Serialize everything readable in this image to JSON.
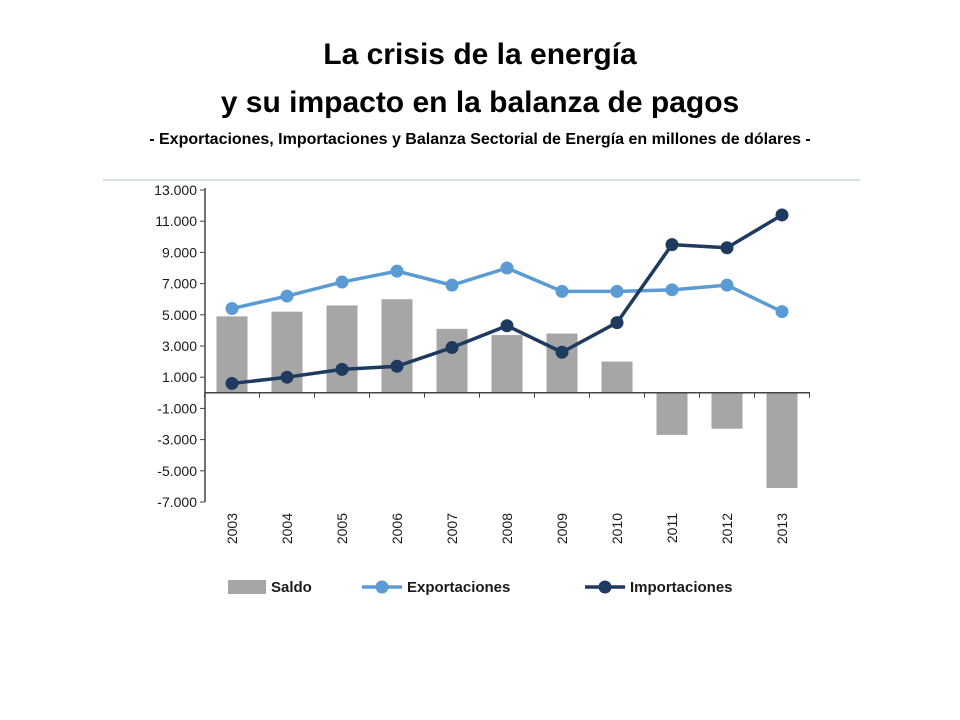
{
  "title_line1": "La crisis de la energía",
  "title_line2": "y su impacto en la balanza de pagos",
  "subtitle": "- Exportaciones, Importaciones y Balanza Sectorial de Energía en millones de dólares -",
  "colors": {
    "saldo": "#a6a6a6",
    "exportaciones": "#5b9bd5",
    "importaciones": "#1f3a5f"
  },
  "chart_data": {
    "type": "bar",
    "categories": [
      "2003",
      "2004",
      "2005",
      "2006",
      "2007",
      "2008",
      "2009",
      "2010",
      "2011",
      "2012",
      "2013"
    ],
    "series": [
      {
        "name": "Saldo",
        "type": "bar",
        "values": [
          4900,
          5200,
          5600,
          6000,
          4100,
          3700,
          3800,
          2000,
          -2700,
          -2300,
          -6100
        ]
      },
      {
        "name": "Exportaciones",
        "type": "line",
        "values": [
          5400,
          6200,
          7100,
          7800,
          6900,
          8000,
          6500,
          6500,
          6600,
          6900,
          5200
        ]
      },
      {
        "name": "Importaciones",
        "type": "line",
        "values": [
          600,
          1000,
          1500,
          1700,
          2900,
          4300,
          2600,
          4500,
          9500,
          9300,
          11400
        ]
      }
    ],
    "yticks": [
      "13.000",
      "11.000",
      "9.000",
      "7.000",
      "5.000",
      "3.000",
      "1.000",
      "-1.000",
      "-3.000",
      "-5.000",
      "-7.000"
    ],
    "ylim": [
      -7000,
      13000
    ],
    "legend_position": "bottom"
  }
}
